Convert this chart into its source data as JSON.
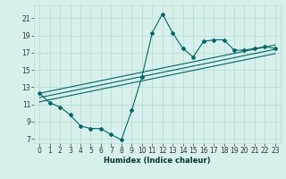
{
  "title": "",
  "xlabel": "Humidex (Indice chaleur)",
  "bg_color": "#d8f0ec",
  "grid_color": "#b8dcd6",
  "line_color": "#006666",
  "xlim": [
    -0.5,
    23.5
  ],
  "ylim": [
    6.5,
    22.5
  ],
  "xticks": [
    0,
    1,
    2,
    3,
    4,
    5,
    6,
    7,
    8,
    9,
    10,
    11,
    12,
    13,
    14,
    15,
    16,
    17,
    18,
    19,
    20,
    21,
    22,
    23
  ],
  "yticks": [
    7,
    9,
    11,
    13,
    15,
    17,
    19,
    21
  ],
  "main_line_x": [
    0,
    1,
    2,
    3,
    4,
    5,
    6,
    7,
    8,
    9,
    10,
    11,
    12,
    13,
    14,
    15,
    16,
    17,
    18,
    19,
    20,
    21,
    22,
    23
  ],
  "main_line_y": [
    12.3,
    11.2,
    10.7,
    9.8,
    8.5,
    8.2,
    8.2,
    7.5,
    6.9,
    10.3,
    14.2,
    19.3,
    21.5,
    19.3,
    17.5,
    16.5,
    18.3,
    18.5,
    18.5,
    17.3,
    17.3,
    17.5,
    17.7,
    17.5
  ],
  "ref_line1_x": [
    0,
    23
  ],
  "ref_line1_y": [
    11.8,
    17.4
  ],
  "ref_line2_x": [
    0,
    23
  ],
  "ref_line2_y": [
    12.3,
    17.9
  ],
  "ref_line3_x": [
    0,
    23
  ],
  "ref_line3_y": [
    11.3,
    16.9
  ],
  "tick_fontsize": 5.5,
  "xlabel_fontsize": 6.0
}
